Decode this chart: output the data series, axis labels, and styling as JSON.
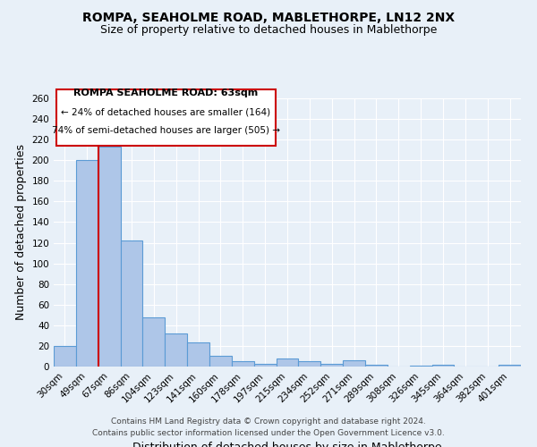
{
  "title": "ROMPA, SEAHOLME ROAD, MABLETHORPE, LN12 2NX",
  "subtitle": "Size of property relative to detached houses in Mablethorpe",
  "xlabel": "Distribution of detached houses by size in Mablethorpe",
  "ylabel": "Number of detached properties",
  "bar_labels": [
    "30sqm",
    "49sqm",
    "67sqm",
    "86sqm",
    "104sqm",
    "123sqm",
    "141sqm",
    "160sqm",
    "178sqm",
    "197sqm",
    "215sqm",
    "234sqm",
    "252sqm",
    "271sqm",
    "289sqm",
    "308sqm",
    "326sqm",
    "345sqm",
    "364sqm",
    "382sqm",
    "401sqm"
  ],
  "bar_values": [
    20,
    200,
    213,
    122,
    48,
    32,
    23,
    10,
    5,
    3,
    8,
    5,
    3,
    6,
    2,
    0,
    1,
    2,
    0,
    0,
    2
  ],
  "bar_color": "#aec6e8",
  "bar_edge_color": "#5b9bd5",
  "ylim": [
    0,
    260
  ],
  "yticks": [
    0,
    20,
    40,
    60,
    80,
    100,
    120,
    140,
    160,
    180,
    200,
    220,
    240,
    260
  ],
  "vline_color": "#cc0000",
  "annotation_title": "ROMPA SEAHOLME ROAD: 63sqm",
  "annotation_line1": "← 24% of detached houses are smaller (164)",
  "annotation_line2": "74% of semi-detached houses are larger (505) →",
  "annotation_box_color": "#ffffff",
  "annotation_box_edge": "#cc0000",
  "footer1": "Contains HM Land Registry data © Crown copyright and database right 2024.",
  "footer2": "Contains public sector information licensed under the Open Government Licence v3.0.",
  "background_color": "#e8f0f8",
  "grid_color": "#ffffff",
  "title_fontsize": 10,
  "subtitle_fontsize": 9,
  "axis_label_fontsize": 9,
  "tick_fontsize": 7.5,
  "footer_fontsize": 6.5
}
